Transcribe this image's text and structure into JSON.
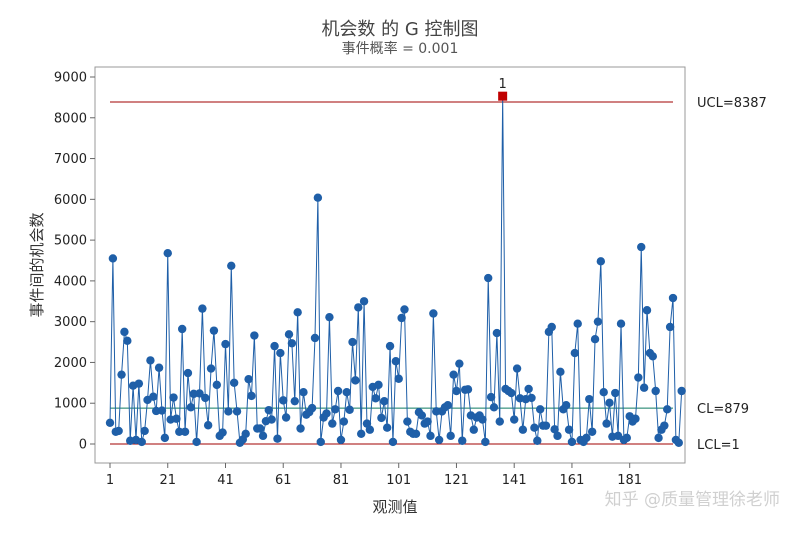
{
  "chart_data": {
    "type": "line",
    "title": "机会数 的 G 控制图",
    "subtitle": "事件概率 = 0.001",
    "xlabel": "观测值",
    "ylabel": "事件间的机会数",
    "xlim": [
      1,
      196
    ],
    "ylim": [
      0,
      9000
    ],
    "x_ticks": [
      1,
      21,
      41,
      61,
      81,
      101,
      121,
      141,
      161,
      181
    ],
    "y_ticks": [
      0,
      1000,
      2000,
      3000,
      4000,
      5000,
      6000,
      7000,
      8000,
      9000
    ],
    "grid": false,
    "series": [
      {
        "values": [
          520,
          4550,
          300,
          320,
          1700,
          2750,
          2530,
          80,
          1430,
          100,
          1480,
          50,
          320,
          1080,
          2050,
          1160,
          810,
          1870,
          820,
          150,
          4680,
          600,
          1140,
          620,
          300,
          2820,
          300,
          1740,
          900,
          1230,
          50,
          1240,
          3320,
          1130,
          460,
          1850,
          2780,
          1450,
          200,
          280,
          2450,
          800,
          4370,
          1500,
          800,
          30,
          110,
          250,
          1590,
          1180,
          2660,
          380,
          380,
          200,
          560,
          830,
          600,
          2400,
          130,
          2230,
          1070,
          650,
          2690,
          2470,
          1050,
          3230,
          380,
          1270,
          720,
          780,
          880,
          2600,
          6040,
          50,
          650,
          750,
          3110,
          500,
          850,
          1300,
          100,
          550,
          1270,
          840,
          2500,
          1560,
          3350,
          250,
          3500,
          500,
          350,
          1400,
          1120,
          1450,
          640,
          1050,
          400,
          2400,
          50,
          2030,
          1600,
          3090,
          3300,
          550,
          300,
          250,
          250,
          780,
          700,
          500,
          550,
          200,
          3200,
          800,
          100,
          800,
          900,
          950,
          200,
          1700,
          1300,
          1970,
          80,
          1330,
          1340,
          700,
          350,
          650,
          700,
          600,
          50,
          4070,
          1150,
          900,
          2720,
          550,
          8530,
          1350,
          1300,
          1250,
          600,
          1850,
          1120,
          350,
          1100,
          1350,
          1130,
          400,
          80,
          850,
          450,
          450,
          2750,
          2870,
          360,
          200,
          1770,
          850,
          950,
          350,
          50,
          2230,
          2950,
          100,
          50,
          150,
          1100,
          300,
          2570,
          3000,
          4480,
          1270,
          500,
          1010,
          180,
          1250,
          200,
          2950,
          100,
          150,
          680,
          550,
          620,
          1630,
          4830,
          1380,
          3280,
          2230,
          2150,
          1300,
          150,
          350,
          450,
          850,
          2870,
          3580,
          100,
          30,
          1300
        ]
      }
    ],
    "control_limits": {
      "ucl": 8387,
      "cl": 879,
      "lcl": 1,
      "ucl_label": "UCL=8387",
      "cl_label": "CL=879",
      "lcl_label": "LCL=1"
    },
    "out_of_control": [
      {
        "x": 137,
        "label": "1"
      }
    ],
    "colors": {
      "series": "#1f5fa8",
      "point": "#1f5fa8",
      "out_of_control": "#c00000",
      "limit_line": "#a00000",
      "center_line": "#0e7a62"
    }
  },
  "watermark": "知乎 @质量管理徐老师"
}
